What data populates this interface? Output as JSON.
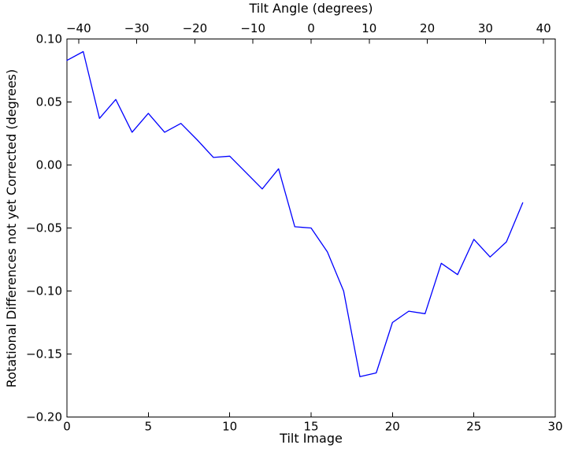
{
  "figure": {
    "top_axis_title": "Tilt Angle (degrees)",
    "bottom_axis_title": "Tilt Image",
    "left_axis_title": "Rotational Differences not yet Corrected (degrees)"
  },
  "chart_data": {
    "type": "line",
    "title": "Tilt Angle (degrees)",
    "xlabel": "Tilt Image",
    "ylabel": "Rotational Differences not yet Corrected (degrees)",
    "x": [
      0,
      1,
      2,
      3,
      4,
      5,
      6,
      7,
      8,
      9,
      10,
      11,
      12,
      13,
      14,
      15,
      16,
      17,
      18,
      19,
      20,
      21,
      22,
      23,
      24,
      25,
      26,
      27,
      28
    ],
    "y": [
      0.083,
      0.09,
      0.037,
      0.052,
      0.026,
      0.041,
      0.026,
      0.033,
      0.02,
      0.006,
      0.007,
      -0.006,
      -0.019,
      -0.003,
      -0.049,
      -0.05,
      -0.069,
      -0.1,
      -0.168,
      -0.165,
      -0.125,
      -0.116,
      -0.118,
      -0.078,
      -0.087,
      -0.059,
      -0.073,
      -0.061,
      -0.03
    ],
    "xlim": [
      0,
      30
    ],
    "ylim": [
      -0.2,
      0.1
    ],
    "top_xlim": [
      -42,
      42
    ],
    "x_ticks": [
      0,
      5,
      10,
      15,
      20,
      25,
      30
    ],
    "x_tick_labels": [
      "0",
      "5",
      "10",
      "15",
      "20",
      "25",
      "30"
    ],
    "y_ticks": [
      0.1,
      0.05,
      0.0,
      -0.05,
      -0.1,
      -0.15,
      -0.2
    ],
    "y_tick_labels": [
      "0.10",
      "0.05",
      "0.00",
      "−0.05",
      "−0.10",
      "−0.15",
      "−0.20"
    ],
    "top_ticks": [
      -40,
      -30,
      -20,
      -10,
      0,
      10,
      20,
      30,
      40
    ],
    "top_tick_labels": [
      "−40",
      "−30",
      "−20",
      "−10",
      "0",
      "10",
      "20",
      "30",
      "40"
    ],
    "line_color": "#0000ff",
    "axis_color": "#000000",
    "background_color": "#ffffff",
    "grid": false,
    "legend": null
  }
}
